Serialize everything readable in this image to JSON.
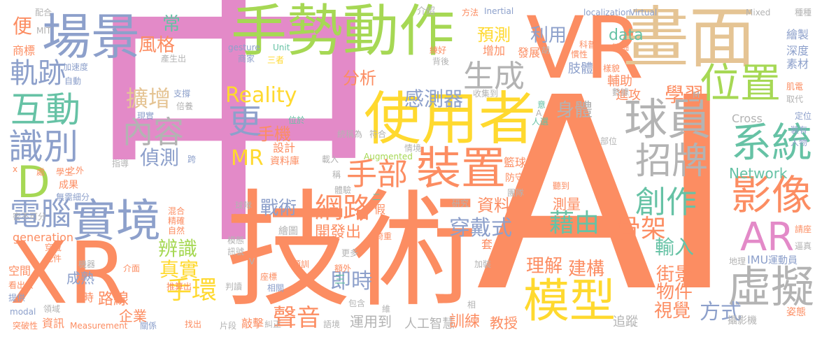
{
  "palette": {
    "pink": "#e38ac8",
    "orange": "#fc8d62",
    "green": "#a6d854",
    "yellow": "#ffd92f",
    "tan": "#e5c494",
    "gray": "#b3b3b3",
    "teal": "#66c2a5",
    "blue": "#8da0cb"
  },
  "words": [
    {
      "text": "中",
      "color": "pink"
    },
    {
      "text": "AI",
      "color": "orange"
    },
    {
      "text": "技術",
      "color": "orange"
    },
    {
      "text": "XR",
      "color": "orange"
    },
    {
      "text": "VR",
      "color": "orange"
    },
    {
      "text": "畫面",
      "color": "tan"
    },
    {
      "text": "使用者",
      "color": "yellow"
    },
    {
      "text": "手勢動作",
      "color": "green"
    },
    {
      "text": "場景",
      "color": "blue"
    },
    {
      "text": "裝置",
      "color": "orange"
    },
    {
      "text": "模型",
      "color": "yellow"
    },
    {
      "text": "實境",
      "color": "blue"
    },
    {
      "text": "虛擬",
      "color": "gray"
    },
    {
      "text": "位置",
      "color": "green"
    },
    {
      "text": "球員",
      "color": "gray"
    },
    {
      "text": "互動",
      "color": "teal"
    },
    {
      "text": "識別",
      "color": "blue"
    },
    {
      "text": "內容",
      "color": "gray"
    },
    {
      "text": "更",
      "color": "blue"
    },
    {
      "text": "系統",
      "color": "teal"
    },
    {
      "text": "影像",
      "color": "orange"
    },
    {
      "text": "招牌",
      "color": "gray"
    },
    {
      "text": "AR",
      "color": "pink"
    },
    {
      "text": "電腦",
      "color": "blue"
    },
    {
      "text": "生成",
      "color": "gray"
    },
    {
      "text": "軌跡",
      "color": "blue"
    },
    {
      "text": "手部",
      "color": "orange"
    },
    {
      "text": "網路",
      "color": "orange"
    },
    {
      "text": "創作",
      "color": "teal"
    },
    {
      "text": "D",
      "color": "green"
    },
    {
      "text": "擴增",
      "color": "tan"
    },
    {
      "text": "Reality",
      "color": "yellow"
    },
    {
      "text": "MR",
      "color": "yellow"
    },
    {
      "text": "感測器",
      "color": "blue"
    },
    {
      "text": "學習",
      "color": "orange"
    },
    {
      "text": "骨架",
      "color": "orange"
    },
    {
      "text": "藉由",
      "color": "teal"
    },
    {
      "text": "穿戴式",
      "color": "blue"
    },
    {
      "text": "即時",
      "color": "blue"
    },
    {
      "text": "手環",
      "color": "yellow"
    },
    {
      "text": "聲音",
      "color": "orange"
    },
    {
      "text": "真實",
      "color": "yellow"
    },
    {
      "text": "辨識",
      "color": "green"
    },
    {
      "text": "偵測",
      "color": "blue"
    },
    {
      "text": "手機",
      "color": "orange"
    },
    {
      "text": "預測",
      "color": "yellow"
    },
    {
      "text": "分析",
      "color": "orange"
    },
    {
      "text": "身體",
      "color": "gray"
    },
    {
      "text": "利用",
      "color": "blue"
    },
    {
      "text": "常",
      "color": "teal"
    },
    {
      "text": "風格",
      "color": "orange"
    },
    {
      "text": "輸入",
      "color": "teal"
    },
    {
      "text": "街景",
      "color": "orange"
    },
    {
      "text": "物件",
      "color": "orange"
    },
    {
      "text": "視覺",
      "color": "orange"
    },
    {
      "text": "方式",
      "color": "blue"
    },
    {
      "text": "戰術",
      "color": "blue"
    },
    {
      "text": "資料",
      "color": "orange"
    },
    {
      "text": "開發出",
      "color": "orange"
    },
    {
      "text": "理解",
      "color": "orange"
    },
    {
      "text": "建構",
      "color": "orange"
    },
    {
      "text": "測量",
      "color": "orange"
    },
    {
      "text": "路線",
      "color": "orange"
    },
    {
      "text": "企業",
      "color": "orange"
    },
    {
      "text": "成熟",
      "color": "blue"
    },
    {
      "text": "運用到",
      "color": "gray"
    },
    {
      "text": "人工智慧",
      "color": "gray"
    },
    {
      "text": "訓練",
      "color": "orange"
    },
    {
      "text": "教授",
      "color": "orange"
    },
    {
      "text": "追蹤",
      "color": "gray"
    },
    {
      "text": "攝影機",
      "color": "gray"
    },
    {
      "text": "資訊",
      "color": "orange"
    },
    {
      "text": "籃球",
      "color": "orange"
    },
    {
      "text": "Network",
      "color": "teal"
    },
    {
      "text": "Cross",
      "color": "gray"
    },
    {
      "text": "data",
      "color": "teal"
    },
    {
      "text": "肢體",
      "color": "blue"
    },
    {
      "text": "輔助",
      "color": "orange"
    },
    {
      "text": "進攻",
      "color": "orange"
    },
    {
      "text": "發展",
      "color": "orange"
    },
    {
      "text": "增加",
      "color": "orange"
    },
    {
      "text": "介紹",
      "color": "gray"
    },
    {
      "text": "方法",
      "color": "orange"
    },
    {
      "text": "Inertial",
      "color": "blue"
    },
    {
      "text": "localization",
      "color": "blue"
    },
    {
      "text": "Virtual",
      "color": "blue"
    },
    {
      "text": "Mixed",
      "color": "gray"
    },
    {
      "text": "種種",
      "color": "gray"
    },
    {
      "text": "繪製",
      "color": "blue"
    },
    {
      "text": "深度",
      "color": "blue"
    },
    {
      "text": "素材",
      "color": "blue"
    },
    {
      "text": "商標",
      "color": "orange"
    },
    {
      "text": "便",
      "color": "orange"
    },
    {
      "text": "配合",
      "color": "gray"
    },
    {
      "text": "MIT",
      "color": "gray"
    },
    {
      "text": "加速度",
      "color": "blue"
    },
    {
      "text": "自動",
      "color": "blue"
    },
    {
      "text": "gesture",
      "color": "blue"
    },
    {
      "text": "商家",
      "color": "blue"
    },
    {
      "text": "Unit",
      "color": "teal"
    },
    {
      "text": "三者",
      "color": "yellow"
    },
    {
      "text": "產生出",
      "color": "gray"
    },
    {
      "text": "符合",
      "color": "gray"
    },
    {
      "text": "統稱為",
      "color": "gray"
    },
    {
      "text": "載入",
      "color": "gray"
    },
    {
      "text": "Augmented",
      "color": "green"
    },
    {
      "text": "情境",
      "color": "gray"
    },
    {
      "text": "設計",
      "color": "orange"
    },
    {
      "text": "資料庫",
      "color": "orange"
    },
    {
      "text": "指導",
      "color": "gray"
    },
    {
      "text": "跨",
      "color": "blue"
    },
    {
      "text": "成果",
      "color": "orange"
    },
    {
      "text": "學生",
      "color": "orange"
    },
    {
      "text": "無需細分",
      "color": "blue"
    },
    {
      "text": "混合",
      "color": "orange"
    },
    {
      "text": "精確",
      "color": "orange"
    },
    {
      "text": "自然",
      "color": "orange"
    },
    {
      "text": "generation",
      "color": "orange"
    },
    {
      "text": "穿戴",
      "color": "orange"
    },
    {
      "text": "空間",
      "color": "orange"
    },
    {
      "text": "看出去",
      "color": "orange"
    },
    {
      "text": "提供",
      "color": "blue"
    },
    {
      "text": "突破性",
      "color": "orange"
    },
    {
      "text": "Measurement",
      "color": "orange"
    },
    {
      "text": "關係",
      "color": "blue"
    },
    {
      "text": "找出",
      "color": "orange"
    },
    {
      "text": "片段",
      "color": "gray"
    },
    {
      "text": "敲擊",
      "color": "orange"
    },
    {
      "text": "糾正",
      "color": "gray"
    },
    {
      "text": "語境",
      "color": "gray"
    },
    {
      "text": "機器",
      "color": "gray"
    },
    {
      "text": "介面",
      "color": "orange"
    },
    {
      "text": "推算出",
      "color": "orange"
    },
    {
      "text": "判讀",
      "color": "gray"
    },
    {
      "text": "領域",
      "color": "gray"
    },
    {
      "text": "時",
      "color": "orange"
    },
    {
      "text": "modal",
      "color": "blue"
    },
    {
      "text": "元件",
      "color": "orange"
    },
    {
      "text": "訊號",
      "color": "gray"
    },
    {
      "text": "模態",
      "color": "gray"
    },
    {
      "text": "木棍",
      "color": "orange"
    },
    {
      "text": "繪圖",
      "color": "gray"
    },
    {
      "text": "球隊",
      "color": "gray"
    },
    {
      "text": "預訓",
      "color": "orange"
    },
    {
      "text": "座標",
      "color": "orange"
    },
    {
      "text": "相關",
      "color": "blue"
    },
    {
      "text": "包含",
      "color": "gray"
    },
    {
      "text": "研究",
      "color": "gray"
    },
    {
      "text": "團隊",
      "color": "gray"
    },
    {
      "text": "聽到",
      "color": "orange"
    },
    {
      "text": "防守",
      "color": "orange"
    },
    {
      "text": "套",
      "color": "orange"
    },
    {
      "text": "加裝",
      "color": "gray"
    },
    {
      "text": "額外",
      "color": "orange"
    },
    {
      "text": "更多",
      "color": "gray"
    },
    {
      "text": "假",
      "color": "orange"
    },
    {
      "text": "體驗",
      "color": "gray"
    },
    {
      "text": "稱",
      "color": "gray"
    },
    {
      "text": "人選",
      "color": "teal"
    },
    {
      "text": "意",
      "color": "teal"
    },
    {
      "text": "收集到",
      "color": "gray"
    },
    {
      "text": "數據",
      "color": "gray"
    },
    {
      "text": "慣性",
      "color": "orange"
    },
    {
      "text": "科普",
      "color": "orange"
    },
    {
      "text": "樣貌",
      "color": "orange"
    },
    {
      "text": "精細",
      "color": "orange"
    },
    {
      "text": "肌電",
      "color": "orange"
    },
    {
      "text": "取代",
      "color": "gray"
    },
    {
      "text": "定位",
      "color": "blue"
    },
    {
      "text": "裝有",
      "color": "blue"
    },
    {
      "text": "人物",
      "color": "blue"
    },
    {
      "text": "部位",
      "color": "gray"
    },
    {
      "text": "請座",
      "color": "orange"
    },
    {
      "text": "逼真",
      "color": "gray"
    },
    {
      "text": "地理",
      "color": "gray"
    },
    {
      "text": "IMU",
      "color": "blue"
    },
    {
      "text": "運動員",
      "color": "blue"
    },
    {
      "text": "姿態",
      "color": "orange"
    },
    {
      "text": "支撐",
      "color": "blue"
    },
    {
      "text": "倍養",
      "color": "gray"
    },
    {
      "text": "現實",
      "color": "blue"
    },
    {
      "text": "位於",
      "color": "teal"
    },
    {
      "text": "練好",
      "color": "orange"
    },
    {
      "text": "背後",
      "color": "gray"
    },
    {
      "text": "之外",
      "color": "orange"
    },
    {
      "text": "處",
      "color": "orange"
    },
    {
      "text": "倚重",
      "color": "orange"
    },
    {
      "text": "密不可分",
      "color": "gray"
    },
    {
      "text": "胡",
      "color": "gray"
    },
    {
      "text": "M",
      "color": "gray"
    },
    {
      "text": "x",
      "color": "orange"
    },
    {
      "text": "二",
      "color": "teal"
    },
    {
      "text": "三",
      "color": "teal"
    },
    {
      "text": "A",
      "color": "gray"
    },
    {
      "text": "V",
      "color": "gray"
    },
    {
      "text": "相",
      "color": "gray"
    },
    {
      "text": "維",
      "color": "gray"
    }
  ]
}
